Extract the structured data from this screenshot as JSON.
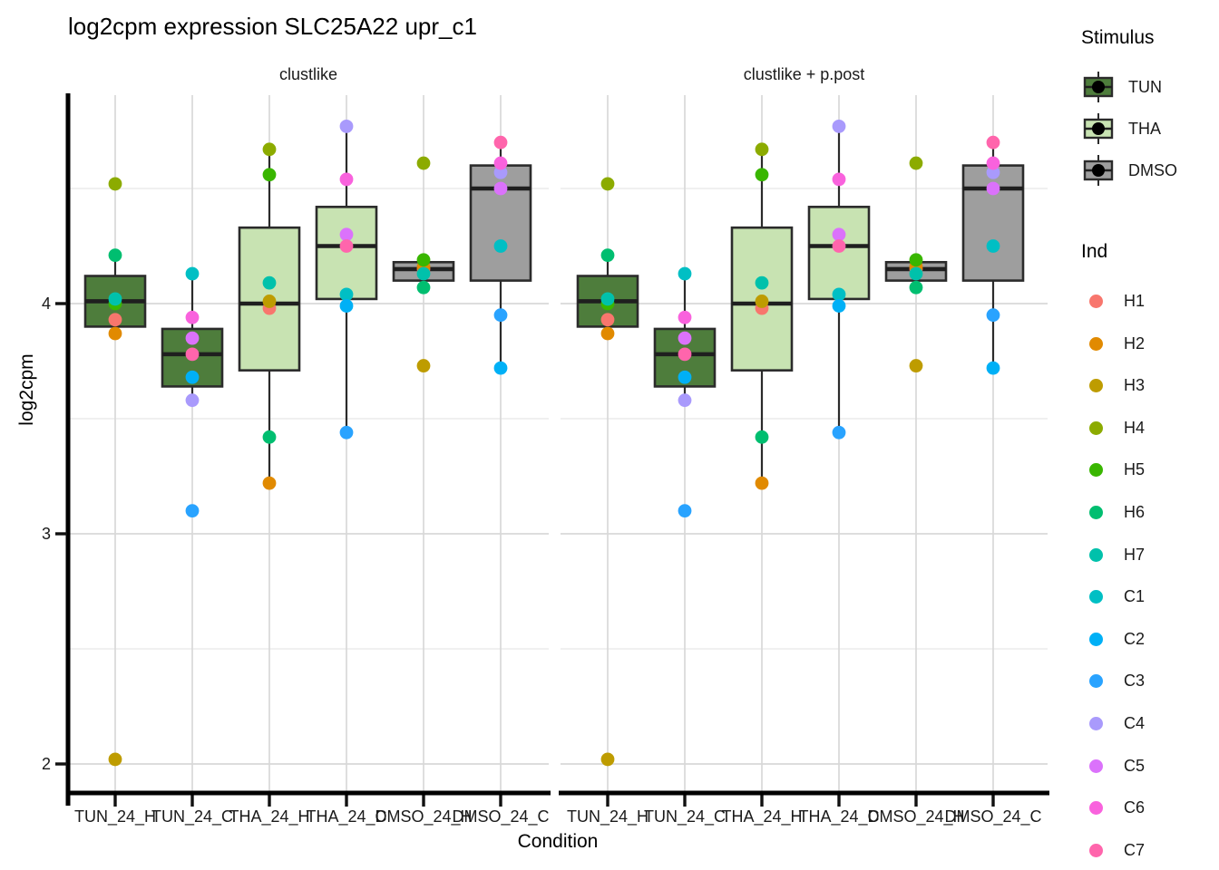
{
  "title": "log2cpm expression SLC25A22 upr_c1",
  "axes": {
    "x_title": "Condition",
    "y_title": "log2cpm",
    "y_tick_labels": [
      "2",
      "3",
      "4"
    ]
  },
  "legend": {
    "stimulus": {
      "title": "Stimulus",
      "items": [
        {
          "label": "TUN",
          "fill": "#4E7D3C"
        },
        {
          "label": "THA",
          "fill": "#C8E3B2"
        },
        {
          "label": "DMSO",
          "fill": "#9E9E9E"
        }
      ]
    },
    "ind": {
      "title": "Ind",
      "items": [
        {
          "label": "H1",
          "color": "#F8766D"
        },
        {
          "label": "H2",
          "color": "#E18A00"
        },
        {
          "label": "H3",
          "color": "#BE9C00"
        },
        {
          "label": "H4",
          "color": "#8CAB00"
        },
        {
          "label": "H5",
          "color": "#39B600"
        },
        {
          "label": "H6",
          "color": "#00BE70"
        },
        {
          "label": "H7",
          "color": "#00C1AB"
        },
        {
          "label": "C1",
          "color": "#00BFC4"
        },
        {
          "label": "C2",
          "color": "#00B0F6"
        },
        {
          "label": "C3",
          "color": "#29A3FF"
        },
        {
          "label": "C4",
          "color": "#A99AFC"
        },
        {
          "label": "C5",
          "color": "#DB72FB"
        },
        {
          "label": "C6",
          "color": "#F962DD"
        },
        {
          "label": "C7",
          "color": "#FF65AC"
        }
      ]
    }
  },
  "chart_data": {
    "type": "boxplot",
    "title": "log2cpm expression SLC25A22 upr_c1",
    "xlabel": "Condition",
    "ylabel": "log2cpm",
    "ylim": [
      1.85,
      4.95
    ],
    "y_major_ticks": [
      2,
      3,
      4
    ],
    "y_minor_ticks": [
      2.5,
      3.5,
      4.5
    ],
    "grid": "on",
    "legend_position": "right",
    "categories": [
      "TUN_24_H",
      "TUN_24_C",
      "THA_24_H",
      "THA_24_C",
      "DMSO_24_H",
      "DMSO_24_C"
    ],
    "facets": [
      {
        "label": "clustlike",
        "groups": [
          {
            "condition": "TUN_24_H",
            "stimulus": "TUN",
            "box": {
              "lower_whisker": 3.87,
              "q1": 3.9,
              "median": 4.01,
              "q3": 4.12,
              "upper_whisker": 4.21
            },
            "points": {
              "H1": 3.93,
              "H2": 3.87,
              "H3": 2.02,
              "H4": 4.52,
              "H5": 4.0,
              "H6": 4.21,
              "H7": 4.02
            }
          },
          {
            "condition": "TUN_24_C",
            "stimulus": "TUN",
            "box": {
              "lower_whisker": 3.58,
              "q1": 3.64,
              "median": 3.78,
              "q3": 3.89,
              "upper_whisker": 4.13
            },
            "points": {
              "C1": 4.13,
              "C2": 3.68,
              "C3": 3.1,
              "C4": 3.58,
              "C5": 3.85,
              "C6": 3.94,
              "C7": 3.78
            }
          },
          {
            "condition": "THA_24_H",
            "stimulus": "THA",
            "box": {
              "lower_whisker": 3.22,
              "q1": 3.71,
              "median": 4.0,
              "q3": 4.33,
              "upper_whisker": 4.67
            },
            "points": {
              "H1": 3.98,
              "H2": 3.22,
              "H3": 4.01,
              "H4": 4.67,
              "H5": 4.56,
              "H6": 3.42,
              "H7": 4.09
            }
          },
          {
            "condition": "THA_24_C",
            "stimulus": "THA",
            "box": {
              "lower_whisker": 3.44,
              "q1": 4.02,
              "median": 4.25,
              "q3": 4.42,
              "upper_whisker": 4.77
            },
            "points": {
              "C1": 4.04,
              "C2": 3.99,
              "C3": 3.44,
              "C4": 4.77,
              "C5": 4.3,
              "C6": 4.54,
              "C7": 4.25
            }
          },
          {
            "condition": "DMSO_24_H",
            "stimulus": "DMSO",
            "box": {
              "lower_whisker": 4.07,
              "q1": 4.1,
              "median": 4.15,
              "q3": 4.18,
              "upper_whisker": 4.19
            },
            "points": {
              "H1": 4.15,
              "H2": 4.16,
              "H3": 3.73,
              "H4": 4.61,
              "H5": 4.19,
              "H6": 4.07,
              "H7": 4.13
            }
          },
          {
            "condition": "DMSO_24_C",
            "stimulus": "DMSO",
            "box": {
              "lower_whisker": 3.72,
              "q1": 4.1,
              "median": 4.5,
              "q3": 4.6,
              "upper_whisker": 4.7
            },
            "points": {
              "C1": 4.25,
              "C2": 3.72,
              "C3": 3.95,
              "C4": 4.57,
              "C5": 4.5,
              "C6": 4.61,
              "C7": 4.7
            }
          }
        ]
      },
      {
        "label": "clustlike + p.post",
        "groups": [
          {
            "condition": "TUN_24_H",
            "stimulus": "TUN",
            "box": {
              "lower_whisker": 3.87,
              "q1": 3.9,
              "median": 4.01,
              "q3": 4.12,
              "upper_whisker": 4.21
            },
            "points": {
              "H1": 3.93,
              "H2": 3.87,
              "H3": 2.02,
              "H4": 4.52,
              "H5": 4.0,
              "H6": 4.21,
              "H7": 4.02
            }
          },
          {
            "condition": "TUN_24_C",
            "stimulus": "TUN",
            "box": {
              "lower_whisker": 3.58,
              "q1": 3.64,
              "median": 3.78,
              "q3": 3.89,
              "upper_whisker": 4.13
            },
            "points": {
              "C1": 4.13,
              "C2": 3.68,
              "C3": 3.1,
              "C4": 3.58,
              "C5": 3.85,
              "C6": 3.94,
              "C7": 3.78
            }
          },
          {
            "condition": "THA_24_H",
            "stimulus": "THA",
            "box": {
              "lower_whisker": 3.22,
              "q1": 3.71,
              "median": 4.0,
              "q3": 4.33,
              "upper_whisker": 4.67
            },
            "points": {
              "H1": 3.98,
              "H2": 3.22,
              "H3": 4.01,
              "H4": 4.67,
              "H5": 4.56,
              "H6": 3.42,
              "H7": 4.09
            }
          },
          {
            "condition": "THA_24_C",
            "stimulus": "THA",
            "box": {
              "lower_whisker": 3.44,
              "q1": 4.02,
              "median": 4.25,
              "q3": 4.42,
              "upper_whisker": 4.77
            },
            "points": {
              "C1": 4.04,
              "C2": 3.99,
              "C3": 3.44,
              "C4": 4.77,
              "C5": 4.3,
              "C6": 4.54,
              "C7": 4.25
            }
          },
          {
            "condition": "DMSO_24_H",
            "stimulus": "DMSO",
            "box": {
              "lower_whisker": 4.07,
              "q1": 4.1,
              "median": 4.15,
              "q3": 4.18,
              "upper_whisker": 4.19
            },
            "points": {
              "H1": 4.15,
              "H2": 4.16,
              "H3": 3.73,
              "H4": 4.61,
              "H5": 4.19,
              "H6": 4.07,
              "H7": 4.13
            }
          },
          {
            "condition": "DMSO_24_C",
            "stimulus": "DMSO",
            "box": {
              "lower_whisker": 3.72,
              "q1": 4.1,
              "median": 4.5,
              "q3": 4.6,
              "upper_whisker": 4.7
            },
            "points": {
              "C1": 4.25,
              "C2": 3.72,
              "C3": 3.95,
              "C4": 4.57,
              "C5": 4.5,
              "C6": 4.61,
              "C7": 4.7
            }
          }
        ]
      }
    ]
  }
}
